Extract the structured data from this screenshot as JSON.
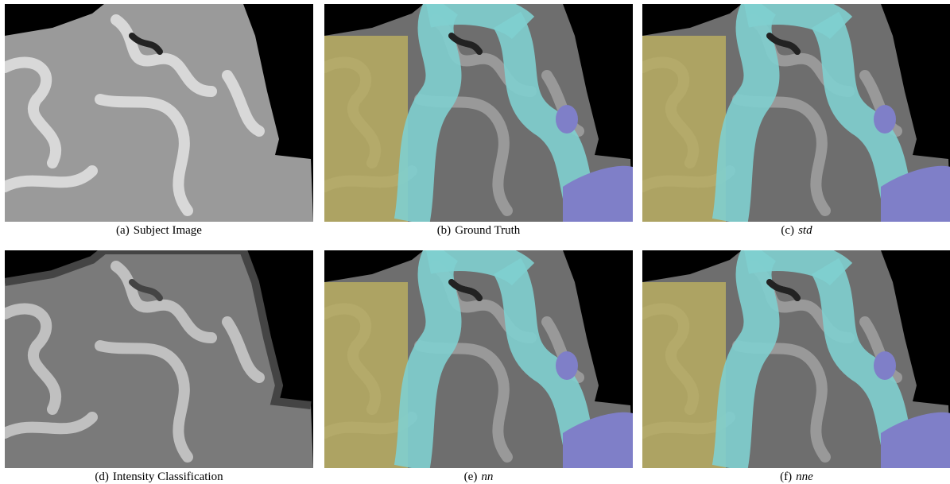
{
  "panels": [
    {
      "label": "(a)",
      "caption": "Subject Image"
    },
    {
      "label": "(b)",
      "caption": "Ground Truth"
    },
    {
      "label": "(c)",
      "caption": "std"
    },
    {
      "label": "(d)",
      "caption": "Intensity Classification"
    },
    {
      "label": "(e)",
      "caption": "nn"
    },
    {
      "label": "(f)",
      "caption": "nne"
    }
  ]
}
